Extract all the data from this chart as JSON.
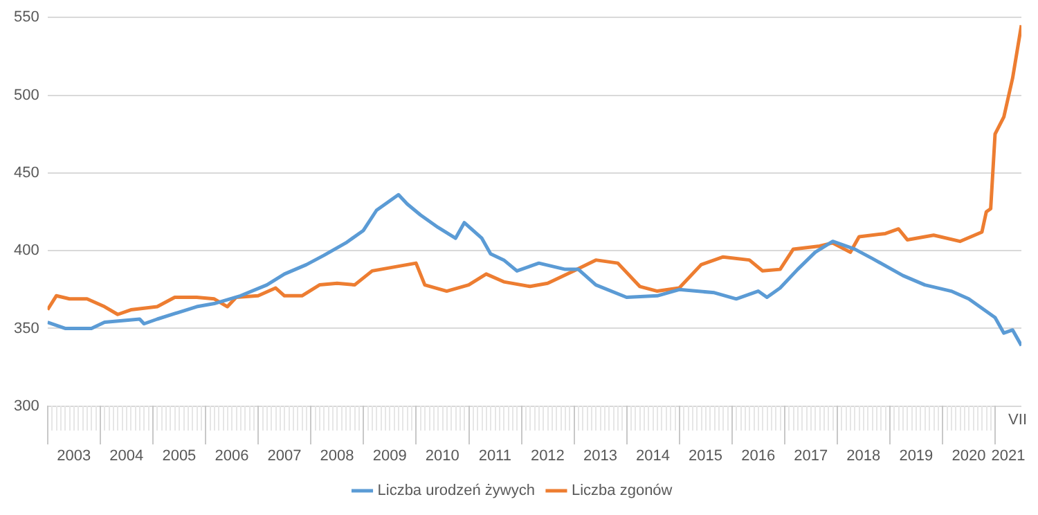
{
  "chart_data": {
    "type": "line",
    "xlim": [
      "2003-01",
      "2021-07"
    ],
    "xticks": [
      {
        "value": "2003-07",
        "label": "2003"
      },
      {
        "value": "2004-07",
        "label": "2004"
      },
      {
        "value": "2005-07",
        "label": "2005"
      },
      {
        "value": "2006-07",
        "label": "2006"
      },
      {
        "value": "2007-07",
        "label": "2007"
      },
      {
        "value": "2008-07",
        "label": "2008"
      },
      {
        "value": "2009-07",
        "label": "2009"
      },
      {
        "value": "2010-07",
        "label": "2010"
      },
      {
        "value": "2011-07",
        "label": "2011"
      },
      {
        "value": "2012-07",
        "label": "2012"
      },
      {
        "value": "2013-07",
        "label": "2013"
      },
      {
        "value": "2014-07",
        "label": "2014"
      },
      {
        "value": "2015-07",
        "label": "2015"
      },
      {
        "value": "2016-07",
        "label": "2016"
      },
      {
        "value": "2017-07",
        "label": "2017"
      },
      {
        "value": "2018-07",
        "label": "2018"
      },
      {
        "value": "2019-07",
        "label": "2019"
      },
      {
        "value": "2020-07",
        "label": "2020"
      },
      {
        "value": "2021-04",
        "label": "2021"
      }
    ],
    "annotations": [
      "VII"
    ],
    "ylim": [
      300,
      550
    ],
    "yticks": [
      300,
      350,
      400,
      450,
      500,
      550
    ],
    "grid": "y",
    "legend": "bottom",
    "marker": "none",
    "line_style": "solid",
    "series": [
      {
        "name": "Liczba urodzeń żywych",
        "color": "#5b9bd5",
        "x": [
          "2003-01",
          "2003-05",
          "2003-11",
          "2004-02",
          "2004-10",
          "2004-11",
          "2005-02",
          "2005-11",
          "2006-03",
          "2006-09",
          "2007-03",
          "2007-07",
          "2007-12",
          "2008-04",
          "2008-09",
          "2009-01",
          "2009-04",
          "2009-09",
          "2009-11",
          "2010-02",
          "2010-06",
          "2010-10",
          "2010-12",
          "2011-04",
          "2011-06",
          "2011-09",
          "2011-12",
          "2012-03",
          "2012-05",
          "2012-11",
          "2013-02",
          "2013-06",
          "2014-01",
          "2014-08",
          "2015-01",
          "2015-09",
          "2016-02",
          "2016-07",
          "2016-09",
          "2016-12",
          "2017-04",
          "2017-08",
          "2017-12",
          "2018-05",
          "2018-09",
          "2019-04",
          "2019-09",
          "2020-03",
          "2020-07",
          "2021-01",
          "2021-03",
          "2021-05",
          "2021-07"
        ],
        "values": [
          354,
          350,
          350,
          354,
          356,
          353,
          356,
          364,
          366,
          371,
          378,
          385,
          391,
          397,
          405,
          413,
          426,
          436,
          430,
          423,
          415,
          408,
          418,
          408,
          398,
          394,
          387,
          390,
          392,
          388,
          388,
          378,
          370,
          371,
          375,
          373,
          369,
          374,
          370,
          376,
          388,
          399,
          406,
          401,
          395,
          384,
          378,
          374,
          369,
          357,
          347,
          349,
          339
        ]
      },
      {
        "name": "Liczba zgonów",
        "color": "#ed7d31",
        "x": [
          "2003-01",
          "2003-03",
          "2003-06",
          "2003-10",
          "2004-02",
          "2004-05",
          "2004-08",
          "2005-02",
          "2005-06",
          "2005-11",
          "2006-03",
          "2006-06",
          "2006-08",
          "2007-01",
          "2007-05",
          "2007-07",
          "2007-11",
          "2008-03",
          "2008-07",
          "2008-11",
          "2009-03",
          "2009-09",
          "2010-01",
          "2010-03",
          "2010-08",
          "2011-01",
          "2011-05",
          "2011-09",
          "2012-03",
          "2012-07",
          "2013-01",
          "2013-06",
          "2013-11",
          "2014-04",
          "2014-08",
          "2015-01",
          "2015-06",
          "2015-11",
          "2016-05",
          "2016-08",
          "2016-12",
          "2017-03",
          "2017-09",
          "2017-12",
          "2018-04",
          "2018-06",
          "2018-12",
          "2019-03",
          "2019-05",
          "2019-11",
          "2020-05",
          "2020-10",
          "2020-11",
          "2020-12",
          "2021-01",
          "2021-03",
          "2021-05",
          "2021-07"
        ],
        "values": [
          362,
          371,
          369,
          369,
          364,
          359,
          362,
          364,
          370,
          370,
          369,
          364,
          370,
          371,
          376,
          371,
          371,
          378,
          379,
          378,
          387,
          390,
          392,
          378,
          374,
          378,
          385,
          380,
          377,
          379,
          387,
          394,
          392,
          377,
          374,
          376,
          391,
          396,
          394,
          387,
          388,
          401,
          403,
          405,
          399,
          409,
          411,
          414,
          407,
          410,
          406,
          412,
          425,
          427,
          475,
          486,
          511,
          545
        ]
      }
    ]
  }
}
